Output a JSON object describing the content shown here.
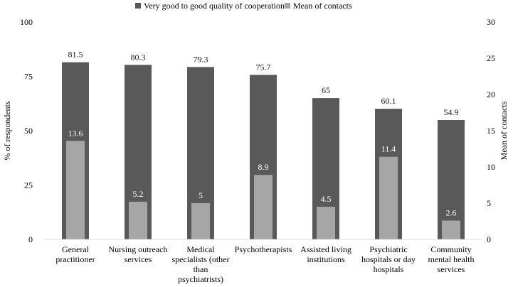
{
  "chart_data": {
    "type": "bar",
    "categories": [
      [
        "General",
        "practitioner"
      ],
      [
        "Nursing outreach",
        "services"
      ],
      [
        "Medical",
        "specialists (other",
        "than",
        "psychiatrists)"
      ],
      [
        "Psychotherapists"
      ],
      [
        "Assisted living",
        "institutions"
      ],
      [
        "Psychiatric",
        "hospitals or day",
        "hospitals"
      ],
      [
        "Community",
        "mental health",
        "services"
      ]
    ],
    "series": [
      {
        "name": "Very good to good quality of cooperation",
        "axis": "left",
        "color": "#595959",
        "values": [
          81.5,
          80.3,
          79.3,
          75.7,
          65,
          60.1,
          54.9
        ],
        "labels": [
          "81.5",
          "80.3",
          "79.3",
          "75.7",
          "65",
          "60.1",
          "54.9"
        ]
      },
      {
        "name": "Mean of contacts",
        "axis": "right",
        "color": "#a6a6a6",
        "values": [
          13.6,
          5.2,
          5,
          8.9,
          4.5,
          11.4,
          2.6
        ],
        "labels": [
          "13.6",
          "5.2",
          "5",
          "8.9",
          "4.5",
          "11.4",
          "2.6"
        ]
      }
    ],
    "ylabel": "% of respondents",
    "y2label": "Mean of contacts",
    "ylim": [
      0,
      100
    ],
    "y2lim": [
      0,
      30
    ],
    "yticks": [
      "0",
      "25",
      "50",
      "75",
      "100"
    ],
    "y2ticks": [
      "0",
      "5",
      "10",
      "15",
      "20",
      "25",
      "30"
    ],
    "legend_position": "top-center",
    "grid": false
  }
}
